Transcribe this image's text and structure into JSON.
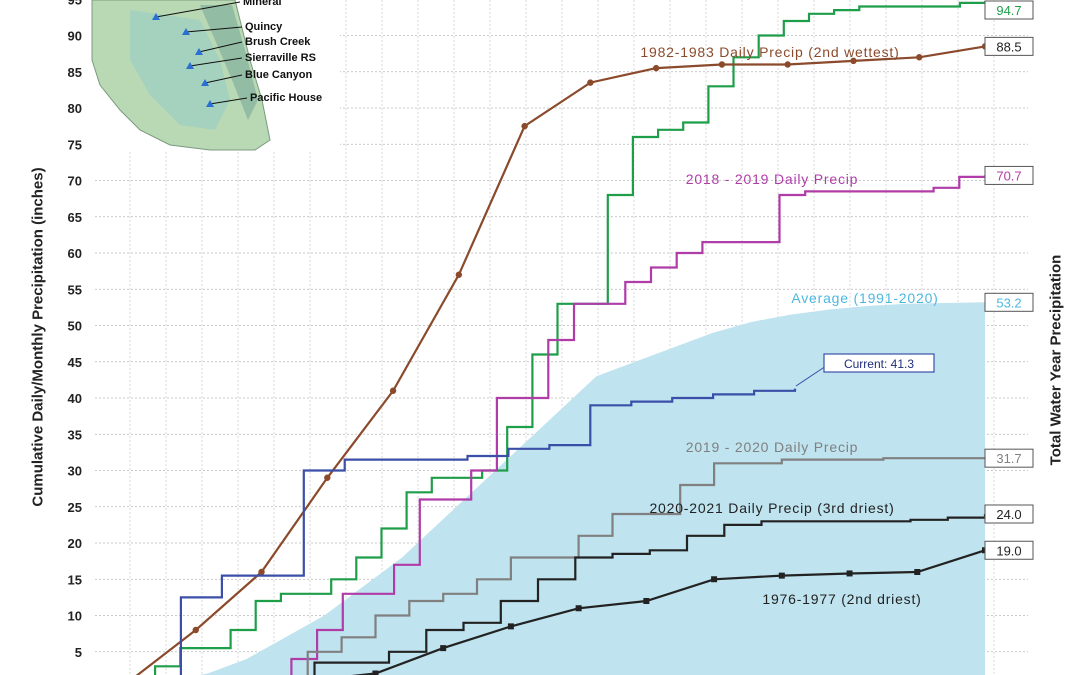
{
  "chart_data": {
    "type": "line",
    "ylabel": "Cumulative Daily/Monthly Precipitation (inches)",
    "ylabel_right": "Total Water Year Precipitation",
    "yticks": [
      5,
      10,
      15,
      20,
      25,
      30,
      35,
      40,
      45,
      50,
      55,
      60,
      65,
      70,
      75,
      80,
      85,
      90,
      95
    ],
    "grid": true,
    "map_labels": [
      "Mineral",
      "Quincy",
      "Brush Creek",
      "Sierraville RS",
      "Blue Canyon",
      "Pacific House"
    ],
    "series": [
      {
        "name": "",
        "color": "#1f9e4a",
        "end_label": "94.7",
        "values": [
          0,
          3,
          5.5,
          5.5,
          8,
          12,
          13,
          13,
          15,
          18,
          22,
          27,
          29,
          29,
          30,
          36,
          46,
          53,
          53,
          68,
          76,
          77,
          78,
          83,
          87,
          90,
          92,
          93,
          93.5,
          94,
          94,
          94,
          94,
          94.5,
          94.7
        ]
      },
      {
        "name": "1982-1983 Daily Precip (2nd wettest)",
        "color": "#8b4a2b",
        "end_label": "88.5",
        "values": [
          1,
          8,
          16,
          29,
          41,
          57,
          77.5,
          83.5,
          85.5,
          86,
          86,
          86.5,
          87,
          88.5
        ]
      },
      {
        "name": "2018 - 2019 Daily Precip",
        "color": "#b03ca8",
        "end_label": "70.7",
        "values": [
          0,
          0,
          4,
          8,
          13,
          13,
          17,
          26,
          26,
          30,
          40,
          40,
          48,
          53,
          53,
          56,
          58,
          60,
          61.5,
          61.5,
          61.5,
          68,
          68.5,
          68.5,
          68.5,
          68.5,
          68.5,
          69,
          70.5,
          70.7
        ]
      },
      {
        "name": "Average (1991-2020)",
        "color": "#bfe3ef",
        "end_label": "53.2",
        "values": [
          0,
          1,
          2,
          4,
          7,
          10,
          14,
          18,
          23,
          28,
          33,
          38,
          43,
          45,
          47,
          49,
          50.5,
          51.5,
          52.2,
          52.7,
          53,
          53.1,
          53.2
        ]
      },
      {
        "name": "Current: 41.3",
        "color": "#3b4fa8",
        "end_label": "",
        "values": [
          0,
          12.5,
          15.5,
          15.5,
          30,
          31.5,
          31.5,
          31.5,
          32,
          33,
          33.5,
          39,
          39.5,
          40,
          40.5,
          41,
          41.3
        ]
      },
      {
        "name": "2019 - 2020 Daily Precip",
        "color": "#808080",
        "end_label": "31.7",
        "values": [
          0,
          0,
          5,
          7,
          10,
          12,
          13,
          15,
          18,
          18,
          21,
          24,
          24,
          28,
          31,
          31,
          31.5,
          31.5,
          31.5,
          31.7,
          31.7,
          31.7,
          31.7
        ]
      },
      {
        "name": "2020-2021 Daily Precip (3rd driest)",
        "color": "#222222",
        "end_label": "24.0",
        "values": [
          0,
          0,
          3.5,
          3.5,
          5,
          8,
          9,
          12,
          15,
          18,
          18.5,
          19,
          21,
          22.5,
          23,
          23,
          23,
          23,
          23.2,
          23.5,
          24
        ]
      },
      {
        "name": "1976-1977 (2nd driest)",
        "color": "#222222",
        "end_label": "19.0",
        "values": [
          0,
          1,
          2,
          5.5,
          8.5,
          11,
          12,
          15,
          15.5,
          15.8,
          16,
          19
        ]
      }
    ]
  }
}
